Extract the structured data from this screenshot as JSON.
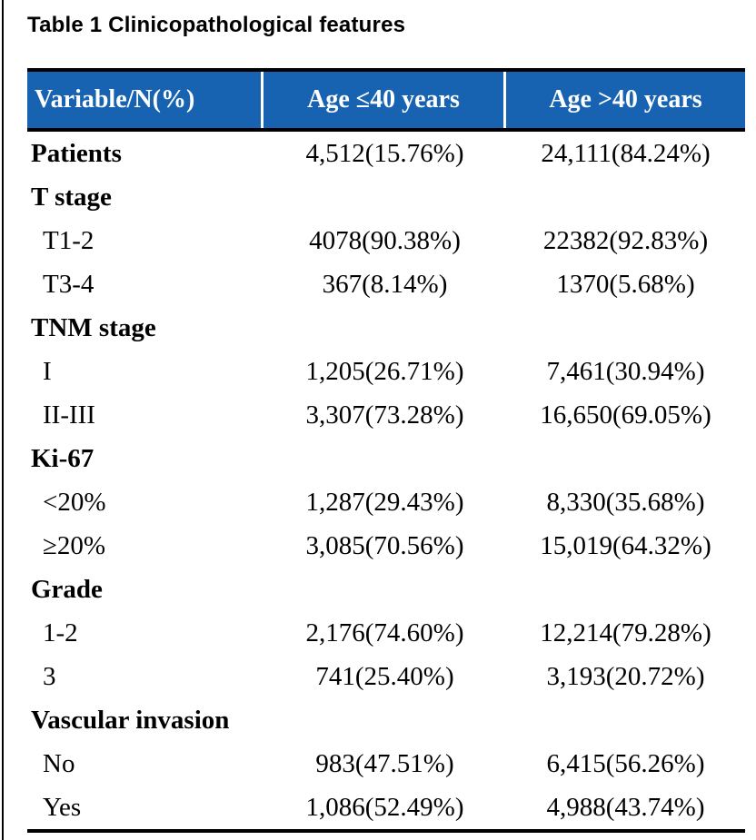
{
  "page": {
    "title": "Table 1 Clinicopathological features"
  },
  "colors": {
    "header_background": "#1763B2",
    "header_text": "#FFFFFF",
    "header_divider": "#FFFFFF",
    "body_text": "#000000",
    "rule": "#000000"
  },
  "table": {
    "headers": [
      "Variable/N(%)",
      "Age ≤40 years",
      "Age >40 years"
    ],
    "rows": [
      {
        "label": "Patients",
        "style": "category",
        "age_le40": "4,512(15.76%)",
        "age_gt40": "24,111(84.24%)"
      },
      {
        "label": "T stage",
        "style": "category",
        "age_le40": "",
        "age_gt40": ""
      },
      {
        "label": "T1-2",
        "style": "sub",
        "age_le40": "4078(90.38%)",
        "age_gt40": "22382(92.83%)"
      },
      {
        "label": "T3-4",
        "style": "sub",
        "age_le40": "367(8.14%)",
        "age_gt40": "1370(5.68%)"
      },
      {
        "label": "TNM stage",
        "style": "category",
        "age_le40": "",
        "age_gt40": ""
      },
      {
        "label": "I",
        "style": "sub",
        "age_le40": "1,205(26.71%)",
        "age_gt40": "7,461(30.94%)"
      },
      {
        "label": "II-III",
        "style": "sub",
        "age_le40": "3,307(73.28%)",
        "age_gt40": "16,650(69.05%)"
      },
      {
        "label": "Ki-67",
        "style": "category",
        "age_le40": "",
        "age_gt40": ""
      },
      {
        "label": "<20%",
        "style": "sub",
        "age_le40": "1,287(29.43%)",
        "age_gt40": "8,330(35.68%)"
      },
      {
        "label": "≥20%",
        "style": "sub",
        "age_le40": "3,085(70.56%)",
        "age_gt40": "15,019(64.32%)"
      },
      {
        "label": "Grade",
        "style": "category",
        "age_le40": "",
        "age_gt40": ""
      },
      {
        "label": "1-2",
        "style": "sub",
        "age_le40": "2,176(74.60%)",
        "age_gt40": "12,214(79.28%)"
      },
      {
        "label": "3",
        "style": "sub",
        "age_le40": "741(25.40%)",
        "age_gt40": "3,193(20.72%)"
      },
      {
        "label": "Vascular invasion",
        "style": "category",
        "age_le40": "",
        "age_gt40": ""
      },
      {
        "label": "No",
        "style": "sub",
        "age_le40": "983(47.51%)",
        "age_gt40": "6,415(56.26%)"
      },
      {
        "label": "Yes",
        "style": "sub",
        "age_le40": "1,086(52.49%)",
        "age_gt40": "4,988(43.74%)"
      }
    ]
  }
}
